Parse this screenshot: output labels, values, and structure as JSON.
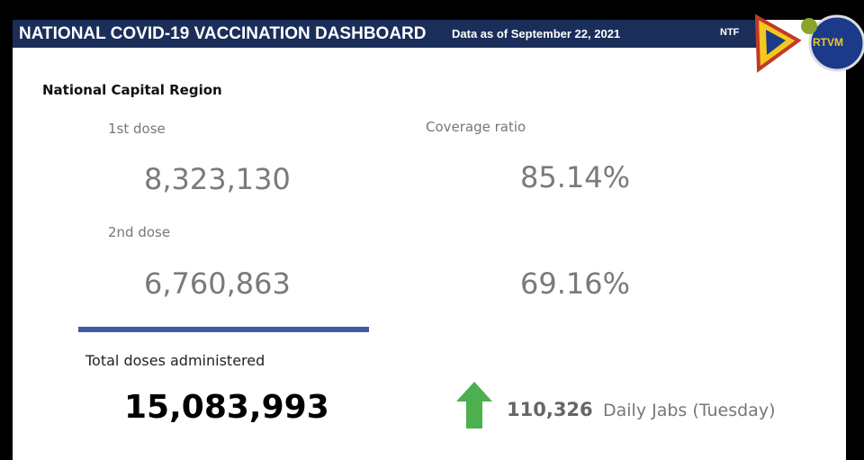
{
  "header": {
    "title": "NATIONAL COVID-19 VACCINATION DASHBOARD",
    "date": "Data as of September 22, 2021",
    "logo_left": "NTF",
    "logo_right": "RTVM"
  },
  "region": "National Capital Region",
  "first_dose": {
    "label": "1st dose",
    "value": "8,323,130"
  },
  "second_dose": {
    "label": "2nd dose",
    "value": "6,760,863"
  },
  "coverage": {
    "label": "Coverage ratio",
    "first": "85.14%",
    "second": "69.16%"
  },
  "total": {
    "label": "Total doses administered",
    "value": "15,083,993"
  },
  "daily": {
    "value": "110,326",
    "label": "Daily Jabs (Tuesday)"
  }
}
